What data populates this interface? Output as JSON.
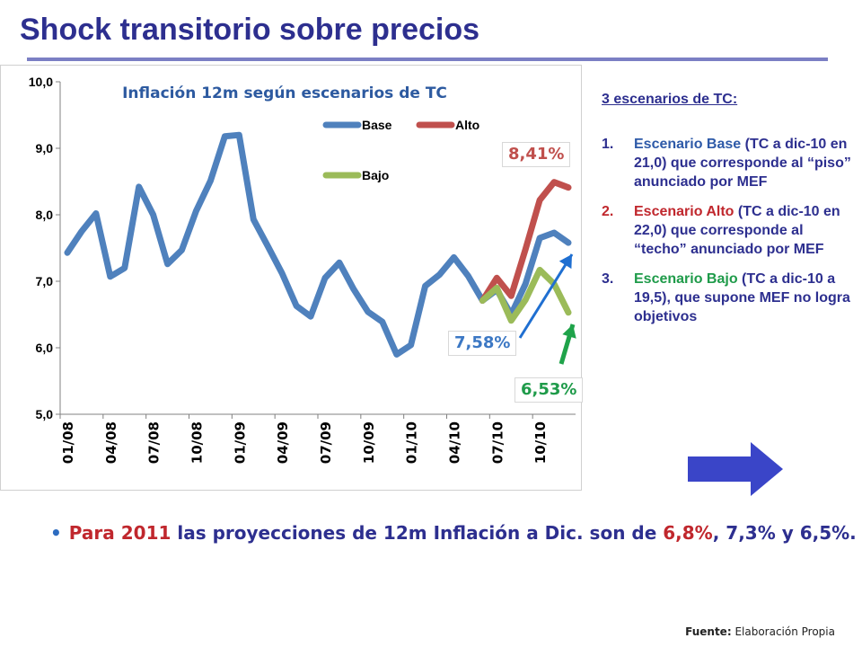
{
  "slide": {
    "title": "Shock transitorio sobre precios"
  },
  "chart_data": {
    "type": "line",
    "title": "Inflación 12m según escenarios de TC",
    "ylim": [
      5.0,
      10.0
    ],
    "yticks": [
      "5,0",
      "6,0",
      "7,0",
      "8,0",
      "9,0",
      "10,0"
    ],
    "xtick_labels": [
      "01/08",
      "04/08",
      "07/08",
      "10/08",
      "01/09",
      "04/09",
      "07/09",
      "10/09",
      "01/10",
      "04/10",
      "07/10",
      "10/10"
    ],
    "x": [
      "01/08",
      "02/08",
      "03/08",
      "04/08",
      "05/08",
      "06/08",
      "07/08",
      "08/08",
      "09/08",
      "10/08",
      "11/08",
      "12/08",
      "01/09",
      "02/09",
      "03/09",
      "04/09",
      "05/09",
      "06/09",
      "07/09",
      "08/09",
      "09/09",
      "10/09",
      "11/09",
      "12/09",
      "01/10",
      "02/10",
      "03/10",
      "04/10",
      "05/10",
      "06/10",
      "07/10",
      "08/10",
      "09/10",
      "10/10",
      "11/10",
      "12/10"
    ],
    "series": [
      {
        "name": "Base",
        "color": "#4f81bd",
        "values": [
          7.43,
          7.75,
          8.02,
          7.07,
          7.2,
          8.42,
          8.0,
          7.26,
          7.47,
          8.06,
          8.51,
          9.18,
          9.2,
          7.93,
          7.53,
          7.12,
          6.63,
          6.47,
          7.05,
          7.28,
          6.88,
          6.54,
          6.39,
          5.9,
          6.04,
          6.93,
          7.1,
          7.36,
          7.08,
          6.71,
          6.87,
          6.5,
          6.96,
          7.65,
          7.73,
          7.58
        ]
      },
      {
        "name": "Alto",
        "color": "#c0504d",
        "values": [
          null,
          null,
          null,
          null,
          null,
          null,
          null,
          null,
          null,
          null,
          null,
          null,
          null,
          null,
          null,
          null,
          null,
          null,
          null,
          null,
          null,
          null,
          null,
          null,
          null,
          null,
          null,
          null,
          null,
          6.71,
          7.05,
          6.78,
          7.48,
          8.22,
          8.49,
          8.41
        ]
      },
      {
        "name": "Bajo",
        "color": "#9bbb59",
        "values": [
          null,
          null,
          null,
          null,
          null,
          null,
          null,
          null,
          null,
          null,
          null,
          null,
          null,
          null,
          null,
          null,
          null,
          null,
          null,
          null,
          null,
          null,
          null,
          null,
          null,
          null,
          null,
          null,
          null,
          6.71,
          6.9,
          6.41,
          6.72,
          7.17,
          6.96,
          6.53
        ]
      }
    ],
    "annotations": {
      "alto": "8,41%",
      "base": "7,58%",
      "bajo": "6,53%"
    },
    "legend_position": "top-center"
  },
  "scenarios": {
    "title": "3 escenarios de TC:",
    "items": [
      {
        "num": "1.",
        "name": "Escenario Base",
        "rest": " (TC a dic-10 en 21,0) que corresponde al “piso” anunciado por MEF"
      },
      {
        "num": "2.",
        "name": "Escenario Alto",
        "rest": " (TC a dic-10 en 22,0) que corresponde al “techo” anunciado por MEF"
      },
      {
        "num": "3.",
        "name": "Escenario Bajo",
        "rest": " (TC a dic-10 a 19,5), que supone MEF no logra objetivos"
      }
    ]
  },
  "bullet": {
    "p1": "Para 2011",
    "p2": " las proyecciones de 12m Inflación a Dic. son de ",
    "p3": "6,8%",
    "p4": ", 7,3% y 6,5%."
  },
  "source": {
    "label": "Fuente:",
    "text": " Elaboración Propia"
  },
  "colors": {
    "title": "#2d2f8f",
    "arrow_right": "#3a45c8",
    "arrow_base": "#1f6fd1",
    "arrow_bajo": "#1fa34a"
  }
}
